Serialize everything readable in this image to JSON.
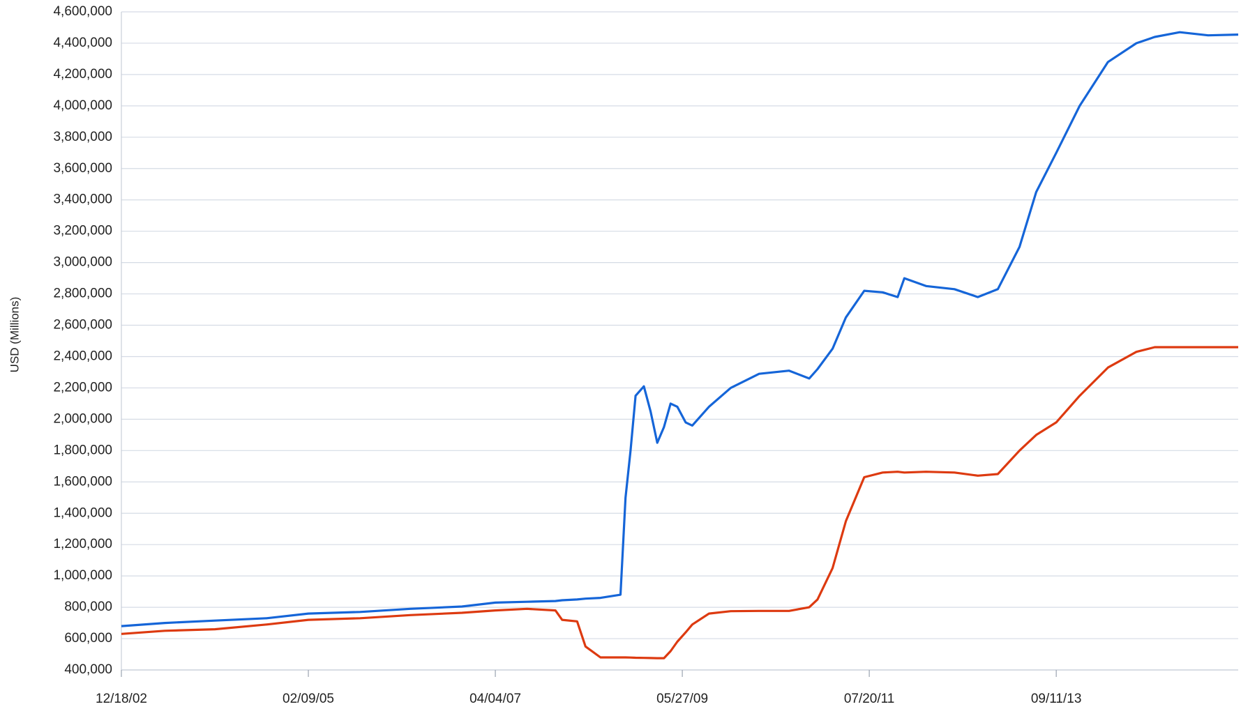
{
  "chart_data": {
    "type": "line",
    "y_label": "USD (Millions)",
    "x": [
      "2002-12-18",
      "2003-06-18",
      "2004-01-14",
      "2004-08-18",
      "2005-02-09",
      "2005-09-14",
      "2006-04-12",
      "2006-11-15",
      "2007-04-04",
      "2007-08-15",
      "2007-12-12",
      "2008-01-09",
      "2008-03-12",
      "2008-04-16",
      "2008-06-18",
      "2008-09-10",
      "2008-10-01",
      "2008-10-22",
      "2008-11-12",
      "2008-12-17",
      "2009-01-14",
      "2009-02-11",
      "2009-03-11",
      "2009-04-08",
      "2009-05-06",
      "2009-06-10",
      "2009-07-08",
      "2009-09-16",
      "2009-12-16",
      "2010-04-14",
      "2010-08-18",
      "2010-11-10",
      "2010-12-15",
      "2011-02-16",
      "2011-04-13",
      "2011-06-29",
      "2011-09-14",
      "2011-11-16",
      "2011-12-14",
      "2012-03-14",
      "2012-07-11",
      "2012-10-17",
      "2013-01-09",
      "2013-04-10",
      "2013-06-19",
      "2013-09-11",
      "2013-12-18",
      "2014-04-16",
      "2014-08-13",
      "2014-10-29",
      "2015-02-11",
      "2015-06-10",
      "2015-10-14"
    ],
    "series": [
      {
        "color": "#1565d8",
        "values": [
          680000,
          700000,
          715000,
          730000,
          760000,
          770000,
          790000,
          805000,
          830000,
          835000,
          840000,
          845000,
          850000,
          855000,
          860000,
          880000,
          1500000,
          1800000,
          2150000,
          2210000,
          2050000,
          1850000,
          1950000,
          2100000,
          2080000,
          1980000,
          1960000,
          2080000,
          2200000,
          2290000,
          2310000,
          2260000,
          2320000,
          2450000,
          2650000,
          2820000,
          2810000,
          2780000,
          2900000,
          2850000,
          2830000,
          2780000,
          2830000,
          3100000,
          3450000,
          3700000,
          4000000,
          4280000,
          4400000,
          4440000,
          4470000,
          4450000,
          4455000
        ]
      },
      {
        "color": "#dd3a10",
        "values": [
          630000,
          650000,
          660000,
          690000,
          720000,
          730000,
          750000,
          765000,
          780000,
          790000,
          780000,
          720000,
          710000,
          550000,
          480000,
          480000,
          480000,
          479000,
          478000,
          477000,
          476000,
          475000,
          475000,
          520000,
          580000,
          640000,
          690000,
          760000,
          775000,
          777000,
          777000,
          800000,
          850000,
          1050000,
          1350000,
          1630000,
          1660000,
          1665000,
          1660000,
          1665000,
          1660000,
          1640000,
          1650000,
          1800000,
          1900000,
          1980000,
          2150000,
          2330000,
          2430000,
          2460000,
          2460000,
          2460000,
          2460000
        ]
      }
    ],
    "xlim": [
      "2002-12-18",
      "2015-10-14"
    ],
    "xticks": [
      {
        "value": "2002-12-18",
        "label": "12/18/02"
      },
      {
        "value": "2005-02-09",
        "label": "02/09/05"
      },
      {
        "value": "2007-04-04",
        "label": "04/04/07"
      },
      {
        "value": "2009-05-27",
        "label": "05/27/09"
      },
      {
        "value": "2011-07-20",
        "label": "07/20/11"
      },
      {
        "value": "2013-09-11",
        "label": "09/11/13"
      }
    ],
    "ylim": [
      400000,
      4600000
    ],
    "yticks": [
      {
        "value": 400000,
        "label": "400,000"
      },
      {
        "value": 600000,
        "label": "600,000"
      },
      {
        "value": 800000,
        "label": "800,000"
      },
      {
        "value": 1000000,
        "label": "1,000,000"
      },
      {
        "value": 1200000,
        "label": "1,200,000"
      },
      {
        "value": 1400000,
        "label": "1,400,000"
      },
      {
        "value": 1600000,
        "label": "1,600,000"
      },
      {
        "value": 1800000,
        "label": "1,800,000"
      },
      {
        "value": 2000000,
        "label": "2,000,000"
      },
      {
        "value": 2200000,
        "label": "2,200,000"
      },
      {
        "value": 2400000,
        "label": "2,400,000"
      },
      {
        "value": 2600000,
        "label": "2,600,000"
      },
      {
        "value": 2800000,
        "label": "2,800,000"
      },
      {
        "value": 3000000,
        "label": "3,000,000"
      },
      {
        "value": 3200000,
        "label": "3,200,000"
      },
      {
        "value": 3400000,
        "label": "3,400,000"
      },
      {
        "value": 3600000,
        "label": "3,600,000"
      },
      {
        "value": 3800000,
        "label": "3,800,000"
      },
      {
        "value": 4000000,
        "label": "4,000,000"
      },
      {
        "value": 4200000,
        "label": "4,200,000"
      },
      {
        "value": 4400000,
        "label": "4,400,000"
      },
      {
        "value": 4600000,
        "label": "4,600,000"
      }
    ],
    "grid": true
  }
}
